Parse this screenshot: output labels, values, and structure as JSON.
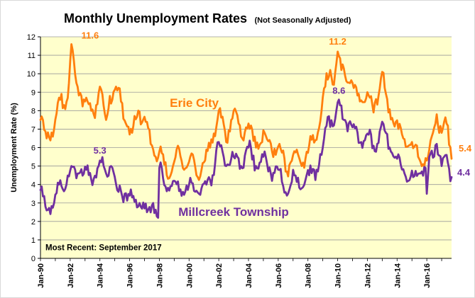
{
  "chart_data": {
    "type": "line",
    "title": "Monthly Unemployment Rates",
    "subtitle": "(Not Seasonally Adjusted)",
    "ylabel": "Unemployment Rate (%)",
    "xlabel": "",
    "ylim": [
      0,
      12
    ],
    "y_ticks": [
      "0",
      "1",
      "2",
      "3",
      "4",
      "5",
      "6",
      "7",
      "8",
      "9",
      "10",
      "11",
      "12"
    ],
    "x_ticks": [
      "Jan-90",
      "Jan-92",
      "Jan-94",
      "Jan-96",
      "Jan-98",
      "Jan-00",
      "Jan-02",
      "Jan-04",
      "Jan-06",
      "Jan-08",
      "Jan-10",
      "Jan-12",
      "Jan-14",
      "Jan-16"
    ],
    "x_range": [
      "1990-01",
      "2017-09"
    ],
    "grid": "horizontal",
    "plot_background": "#ffffcc",
    "note": "Most Recent: September 2017",
    "series": [
      {
        "name": "Erie City",
        "color": "#ff7f0e",
        "anchors": [
          [
            "1990-01",
            7.5
          ],
          [
            "1990-06",
            6.5
          ],
          [
            "1990-12",
            7.0
          ],
          [
            "1991-04",
            8.7
          ],
          [
            "1991-08",
            8.3
          ],
          [
            "1991-12",
            9.5
          ],
          [
            "1992-02",
            11.6
          ],
          [
            "1992-06",
            9.5
          ],
          [
            "1992-10",
            8.8
          ],
          [
            "1993-03",
            8.5
          ],
          [
            "1993-08",
            7.8
          ],
          [
            "1994-01",
            9.3
          ],
          [
            "1994-06",
            7.5
          ],
          [
            "1994-09",
            8.8
          ],
          [
            "1995-02",
            9.3
          ],
          [
            "1995-06",
            8.5
          ],
          [
            "1995-10",
            7.3
          ],
          [
            "1996-03",
            6.8
          ],
          [
            "1996-08",
            8.0
          ],
          [
            "1997-02",
            7.4
          ],
          [
            "1997-06",
            6.2
          ],
          [
            "1997-10",
            5.5
          ],
          [
            "1998-03",
            5.7
          ],
          [
            "1998-07",
            4.5
          ],
          [
            "1998-12",
            5.0
          ],
          [
            "1999-04",
            6.1
          ],
          [
            "1999-09",
            4.8
          ],
          [
            "2000-02",
            5.5
          ],
          [
            "2000-07",
            4.5
          ],
          [
            "2001-01",
            5.2
          ],
          [
            "2001-06",
            6.0
          ],
          [
            "2002-01",
            8.0
          ],
          [
            "2002-07",
            6.3
          ],
          [
            "2003-01",
            8.0
          ],
          [
            "2003-07",
            6.6
          ],
          [
            "2004-01",
            7.3
          ],
          [
            "2004-07",
            6.0
          ],
          [
            "2005-02",
            6.8
          ],
          [
            "2005-08",
            5.8
          ],
          [
            "2006-02",
            6.2
          ],
          [
            "2006-08",
            4.7
          ],
          [
            "2007-02",
            5.8
          ],
          [
            "2007-08",
            5.0
          ],
          [
            "2008-02",
            6.1
          ],
          [
            "2008-07",
            6.4
          ],
          [
            "2008-12",
            8.0
          ],
          [
            "2009-03",
            9.3
          ],
          [
            "2009-07",
            10.2
          ],
          [
            "2009-10",
            9.4
          ],
          [
            "2010-01",
            11.2
          ],
          [
            "2010-04",
            10.2
          ],
          [
            "2010-08",
            9.6
          ],
          [
            "2011-01",
            9.5
          ],
          [
            "2011-07",
            8.5
          ],
          [
            "2012-01",
            9.0
          ],
          [
            "2012-06",
            7.9
          ],
          [
            "2013-01",
            10.1
          ],
          [
            "2013-06",
            7.9
          ],
          [
            "2013-12",
            7.4
          ],
          [
            "2014-06",
            6.5
          ],
          [
            "2015-01",
            6.3
          ],
          [
            "2015-06",
            5.5
          ],
          [
            "2016-01",
            5.3
          ],
          [
            "2016-06",
            6.8
          ],
          [
            "2016-09",
            7.8
          ],
          [
            "2017-01",
            6.8
          ],
          [
            "2017-05",
            7.3
          ],
          [
            "2017-09",
            5.4
          ]
        ]
      },
      {
        "name": "Millcreek Township",
        "color": "#7030a0",
        "anchors": [
          [
            "1990-01",
            3.7
          ],
          [
            "1990-06",
            2.6
          ],
          [
            "1990-12",
            3.0
          ],
          [
            "1991-04",
            4.0
          ],
          [
            "1991-10",
            4.0
          ],
          [
            "1992-02",
            5.0
          ],
          [
            "1992-08",
            4.6
          ],
          [
            "1993-02",
            4.8
          ],
          [
            "1993-08",
            4.3
          ],
          [
            "1994-01",
            5.3
          ],
          [
            "1994-06",
            4.6
          ],
          [
            "1994-10",
            5.0
          ],
          [
            "1995-03",
            3.7
          ],
          [
            "1995-09",
            3.5
          ],
          [
            "1996-03",
            3.3
          ],
          [
            "1996-09",
            3.0
          ],
          [
            "1997-03",
            2.5
          ],
          [
            "1997-08",
            3.0
          ],
          [
            "1997-12",
            2.2
          ],
          [
            "1998-01",
            4.9
          ],
          [
            "1998-06",
            3.9
          ],
          [
            "1999-01",
            4.2
          ],
          [
            "1999-08",
            3.6
          ],
          [
            "2000-03",
            4.1
          ],
          [
            "2000-09",
            3.5
          ],
          [
            "2001-03",
            4.0
          ],
          [
            "2001-08",
            4.5
          ],
          [
            "2002-01",
            6.3
          ],
          [
            "2002-07",
            5.0
          ],
          [
            "2003-01",
            5.5
          ],
          [
            "2003-07",
            5.0
          ],
          [
            "2004-01",
            6.0
          ],
          [
            "2004-07",
            5.0
          ],
          [
            "2005-01",
            5.5
          ],
          [
            "2005-07",
            4.6
          ],
          [
            "2006-01",
            4.8
          ],
          [
            "2006-08",
            3.4
          ],
          [
            "2007-02",
            4.5
          ],
          [
            "2007-08",
            3.8
          ],
          [
            "2008-02",
            4.5
          ],
          [
            "2008-08",
            4.8
          ],
          [
            "2009-01",
            6.0
          ],
          [
            "2009-06",
            7.7
          ],
          [
            "2009-10",
            7.2
          ],
          [
            "2010-02",
            8.6
          ],
          [
            "2010-06",
            7.5
          ],
          [
            "2011-01",
            7.1
          ],
          [
            "2011-08",
            6.3
          ],
          [
            "2012-02",
            6.7
          ],
          [
            "2012-07",
            5.8
          ],
          [
            "2013-01",
            7.4
          ],
          [
            "2013-07",
            6.0
          ],
          [
            "2014-01",
            5.4
          ],
          [
            "2014-07",
            4.6
          ],
          [
            "2015-02",
            4.4
          ],
          [
            "2015-08",
            4.6
          ],
          [
            "2015-12",
            4.9
          ],
          [
            "2016-01",
            3.5
          ],
          [
            "2016-03",
            5.5
          ],
          [
            "2016-09",
            6.2
          ],
          [
            "2017-01",
            5.0
          ],
          [
            "2017-05",
            5.6
          ],
          [
            "2017-09",
            4.4
          ]
        ]
      }
    ],
    "annotations": [
      {
        "text": "11.6",
        "date": "1992-02",
        "value": 11.6,
        "series": "Erie City"
      },
      {
        "text": "5.3",
        "date": "1994-01",
        "value": 5.3,
        "series": "Millcreek Township"
      },
      {
        "text": "11.2",
        "date": "2010-01",
        "value": 11.2,
        "series": "Erie City"
      },
      {
        "text": "8.6",
        "date": "2010-02",
        "value": 8.6,
        "series": "Millcreek Township"
      },
      {
        "text": "5.4",
        "date": "2017-09",
        "value": 5.4,
        "series": "Erie City"
      },
      {
        "text": "4.4",
        "date": "2017-09",
        "value": 4.4,
        "series": "Millcreek Township"
      }
    ]
  }
}
